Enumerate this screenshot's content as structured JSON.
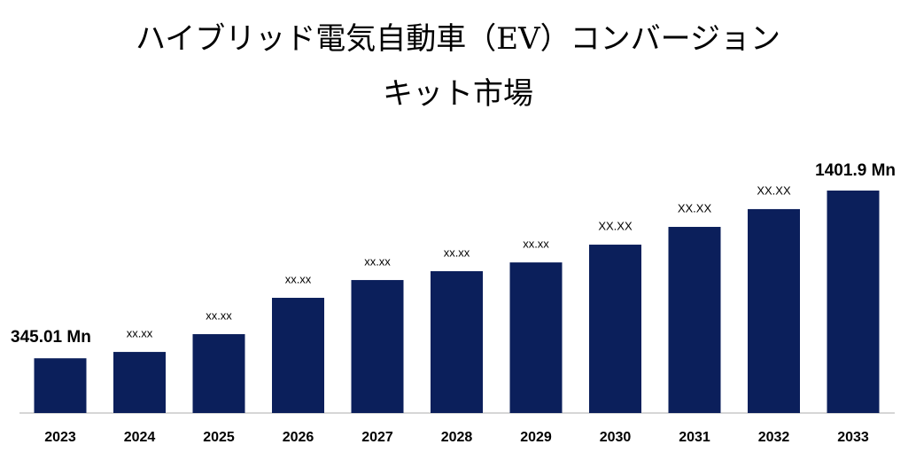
{
  "chart_data": {
    "type": "bar",
    "title": [
      "ハイブリッド電気自動車（EV）コンバージョン",
      "キット市場"
    ],
    "categories": [
      "2023",
      "2024",
      "2025",
      "2026",
      "2027",
      "2028",
      "2029",
      "2030",
      "2031",
      "2032",
      "2033"
    ],
    "values": [
      345.01,
      385,
      497,
      726,
      838,
      894,
      949,
      1061,
      1173,
      1285,
      1401.9
    ],
    "value_labels": [
      "345.01 Mn",
      "xx.xx",
      "xx.xx",
      "xx.xx",
      "xx.xx",
      "xx.xx",
      "xx.xx",
      "XX.XX",
      "XX.XX",
      "XX.XX",
      "1401.9 Mn"
    ],
    "color": "#0b1f5b"
  }
}
